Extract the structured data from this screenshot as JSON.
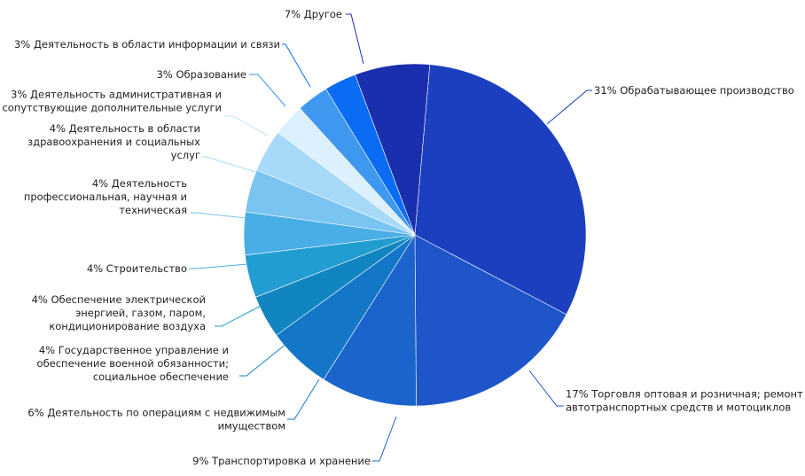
{
  "chart_data": {
    "type": "pie",
    "title": "",
    "slices": [
      {
        "label_lines": [
          "31% Обрабатывающее производство"
        ],
        "value": 31,
        "color": "#1b3fbe"
      },
      {
        "label_lines": [
          "17% Торговля оптовая и розничная; ремонт",
          "автотранспортных средств и мотоциклов"
        ],
        "value": 17,
        "color": "#1e55c8"
      },
      {
        "label_lines": [
          "9% Транспортировка и хранение"
        ],
        "value": 9,
        "color": "#1a64cc"
      },
      {
        "label_lines": [
          "6% Деятельность по операциям с недвижимым",
          "имуществом"
        ],
        "value": 6,
        "color": "#1476c6"
      },
      {
        "label_lines": [
          "4% Государственное управление и",
          "обеспечение военной обязанности;",
          "социальное обеспечение"
        ],
        "value": 4,
        "color": "#1185bf"
      },
      {
        "label_lines": [
          "4% Обеспечение электрической",
          "энергией, газом, паром,",
          "кондиционирование воздуха"
        ],
        "value": 4,
        "color": "#229dd2"
      },
      {
        "label_lines": [
          "4% Строительство"
        ],
        "value": 4,
        "color": "#4aaee6"
      },
      {
        "label_lines": [
          "4% Деятельность",
          "профессиональная, научная и",
          "техническая"
        ],
        "value": 4,
        "color": "#7ac4f2"
      },
      {
        "label_lines": [
          "4% Деятельность в области",
          "здравоохранения и социальных",
          "услуг"
        ],
        "value": 4,
        "color": "#a7daf9"
      },
      {
        "label_lines": [
          "3% Деятельность административная и",
          "сопутствующие дополнительные услуги"
        ],
        "value": 3,
        "color": "#dcf1fd"
      },
      {
        "label_lines": [
          "3% Образование"
        ],
        "value": 3,
        "color": "#3f98f0"
      },
      {
        "label_lines": [
          "3% Деятельность в области информации и связи"
        ],
        "value": 3,
        "color": "#0a6cf2"
      },
      {
        "label_lines": [
          "7% Другое"
        ],
        "value": 7,
        "color": "#1a2fae"
      }
    ]
  }
}
